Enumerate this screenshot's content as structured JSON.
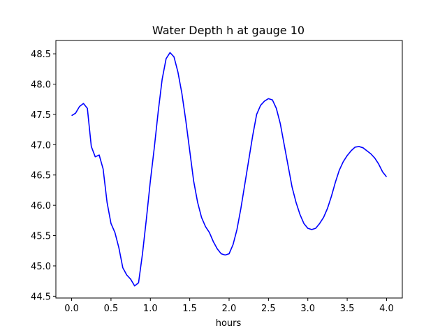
{
  "chart_data": {
    "type": "line",
    "title": "Water Depth h at gauge 10",
    "xlabel": "hours",
    "ylabel": "",
    "xlim": [
      -0.2,
      4.2
    ],
    "ylim": [
      44.47,
      48.72
    ],
    "xticks": [
      "0.0",
      "0.5",
      "1.0",
      "1.5",
      "2.0",
      "2.5",
      "3.0",
      "3.5",
      "4.0"
    ],
    "yticks": [
      "44.5",
      "45.0",
      "45.5",
      "46.0",
      "46.5",
      "47.0",
      "47.5",
      "48.0",
      "48.5"
    ],
    "grid": false,
    "series": [
      {
        "color": "#0000ff",
        "x": [
          0.0,
          0.05,
          0.1,
          0.15,
          0.2,
          0.25,
          0.3,
          0.35,
          0.4,
          0.45,
          0.5,
          0.55,
          0.6,
          0.65,
          0.7,
          0.75,
          0.8,
          0.85,
          0.9,
          0.95,
          1.0,
          1.05,
          1.1,
          1.15,
          1.2,
          1.25,
          1.3,
          1.35,
          1.4,
          1.45,
          1.5,
          1.55,
          1.6,
          1.65,
          1.7,
          1.75,
          1.8,
          1.85,
          1.9,
          1.95,
          2.0,
          2.05,
          2.1,
          2.15,
          2.2,
          2.25,
          2.3,
          2.35,
          2.4,
          2.45,
          2.5,
          2.55,
          2.6,
          2.65,
          2.7,
          2.75,
          2.8,
          2.85,
          2.9,
          2.95,
          3.0,
          3.05,
          3.1,
          3.15,
          3.2,
          3.25,
          3.3,
          3.35,
          3.4,
          3.45,
          3.5,
          3.55,
          3.6,
          3.65,
          3.7,
          3.75,
          3.8,
          3.85,
          3.9,
          3.95,
          4.0
        ],
        "y": [
          47.48,
          47.52,
          47.63,
          47.68,
          47.6,
          46.97,
          46.8,
          46.83,
          46.6,
          46.05,
          45.7,
          45.55,
          45.3,
          44.97,
          44.85,
          44.78,
          44.67,
          44.72,
          45.2,
          45.78,
          46.4,
          46.95,
          47.55,
          48.08,
          48.42,
          48.52,
          48.45,
          48.2,
          47.85,
          47.4,
          46.9,
          46.4,
          46.05,
          45.8,
          45.65,
          45.55,
          45.4,
          45.28,
          45.2,
          45.18,
          45.2,
          45.35,
          45.6,
          45.95,
          46.35,
          46.75,
          47.15,
          47.5,
          47.65,
          47.72,
          47.76,
          47.74,
          47.6,
          47.35,
          47.0,
          46.65,
          46.3,
          46.05,
          45.85,
          45.7,
          45.62,
          45.6,
          45.62,
          45.7,
          45.8,
          45.95,
          46.15,
          46.38,
          46.58,
          46.72,
          46.82,
          46.9,
          46.96,
          46.97,
          46.95,
          46.9,
          46.85,
          46.78,
          46.68,
          46.55,
          46.47
        ]
      }
    ]
  }
}
